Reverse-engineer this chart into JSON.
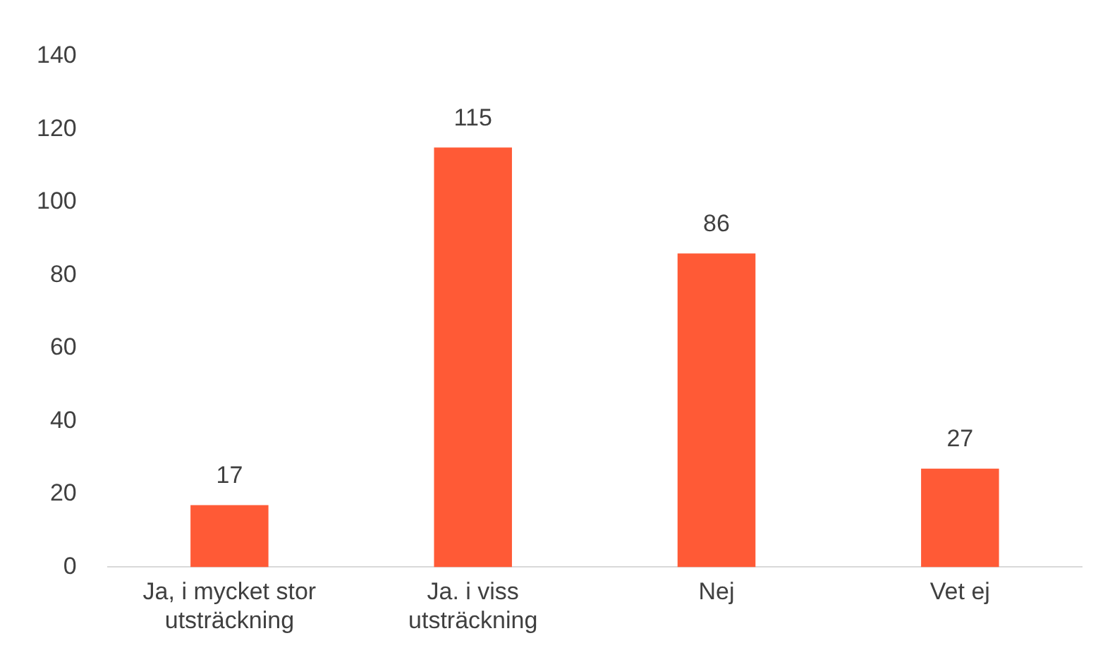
{
  "chart_data": {
    "type": "bar",
    "categories": [
      "Ja, i mycket stor utsträckning",
      "Ja. i viss utsträckning",
      "Nej",
      "Vet ej"
    ],
    "values": [
      17,
      115,
      86,
      27
    ],
    "color": "#ff5a36",
    "ylim": [
      0,
      140
    ],
    "yticks": [
      0,
      20,
      40,
      60,
      80,
      100,
      120,
      140
    ],
    "grid": false,
    "legend": false,
    "data_labels": true
  }
}
